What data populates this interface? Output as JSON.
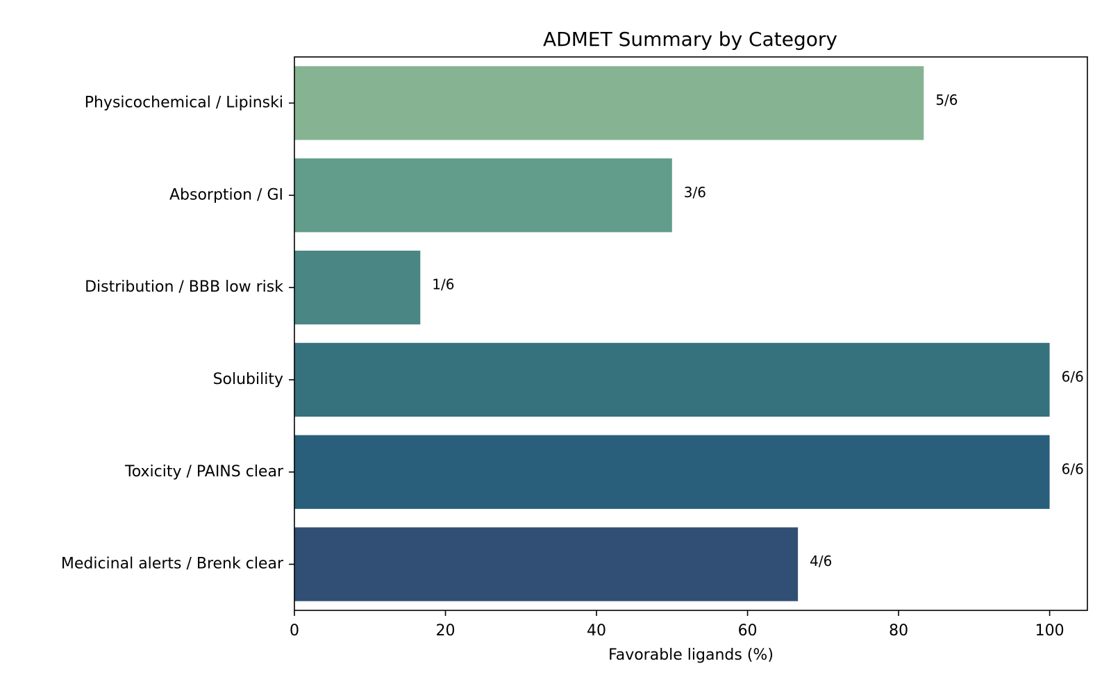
{
  "chart_data": {
    "type": "bar",
    "orientation": "horizontal",
    "title": "ADMET Summary by Category",
    "xlabel": "Favorable ligands (%)",
    "ylabel": "",
    "xlim": [
      0,
      105
    ],
    "xticks": [
      0,
      20,
      40,
      60,
      80,
      100
    ],
    "grid": false,
    "categories": [
      "Physicochemical / Lipinski",
      "Absorption / GI",
      "Distribution / BBB low risk",
      "Solubility",
      "Toxicity / PAINS clear",
      "Medicinal alerts / Brenk clear"
    ],
    "values": [
      83.33,
      50.0,
      16.67,
      100.0,
      100.0,
      66.67
    ],
    "data_labels": [
      "5/6",
      "3/6",
      "1/6",
      "6/6",
      "6/6",
      "4/6"
    ],
    "colors": [
      "#86b392",
      "#629c8b",
      "#4a8683",
      "#36717e",
      "#2a5f7b",
      "#314f75"
    ]
  }
}
